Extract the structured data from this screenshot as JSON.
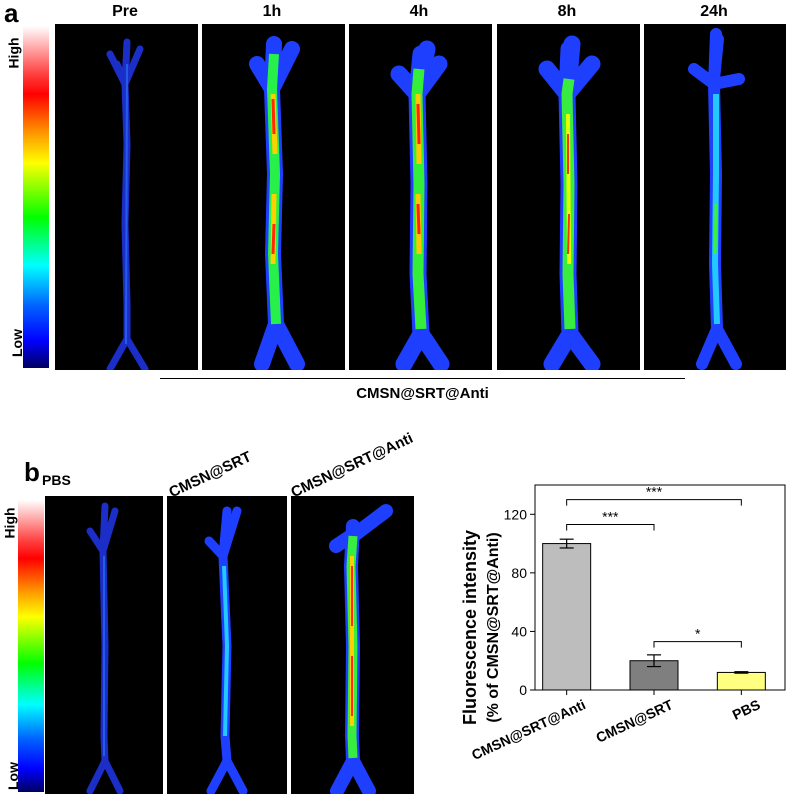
{
  "panel_a": {
    "letter": "a",
    "scale": {
      "high": "High",
      "low": "Low"
    },
    "timepoints": [
      "Pre",
      "1h",
      "4h",
      "8h",
      "24h"
    ],
    "group_label": "CMSN@SRT@Anti"
  },
  "panel_b": {
    "letter": "b",
    "scale": {
      "high": "High",
      "low": "Low"
    },
    "groups": [
      "PBS",
      "CMSN@SRT",
      "CMSN@SRT@Anti"
    ]
  },
  "colors": {
    "bar_cmsn_srt_anti": "#bdbdbd",
    "bar_cmsn_srt": "#7f7f7f",
    "bar_pbs": "#ffff80"
  },
  "chart_data": {
    "type": "bar",
    "categories": [
      "CMSN@SRT@Anti",
      "CMSN@SRT",
      "PBS"
    ],
    "values": [
      100,
      20,
      12
    ],
    "errors": [
      3,
      4,
      0.5
    ],
    "ylabel_line1": "Fluorescence intensity",
    "ylabel_line2": "(% of CMSN@SRT@Anti)",
    "ylim": [
      0,
      140
    ],
    "yticks": [
      "0",
      "40",
      "80",
      "120"
    ],
    "significance": [
      "***",
      "***",
      "*"
    ]
  }
}
